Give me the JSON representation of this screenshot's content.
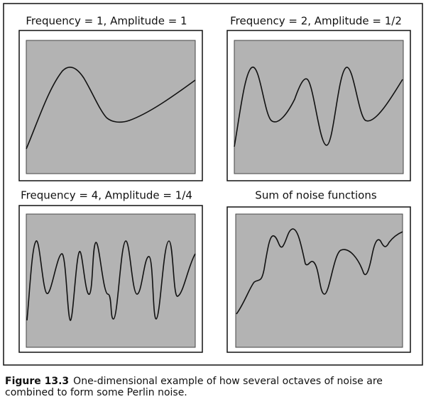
{
  "panels": [
    {
      "title": "Frequency = 1, Amplitude = 1"
    },
    {
      "title": "Frequency = 2, Amplitude = 1/2"
    },
    {
      "title": "Frequency = 4, Amplitude = 1/4"
    },
    {
      "title": "Sum of noise functions"
    }
  ],
  "caption": {
    "label": "Figure 13.3",
    "text": "One-dimensional example of how several octaves of noise are combined to form some Perlin noise."
  }
}
